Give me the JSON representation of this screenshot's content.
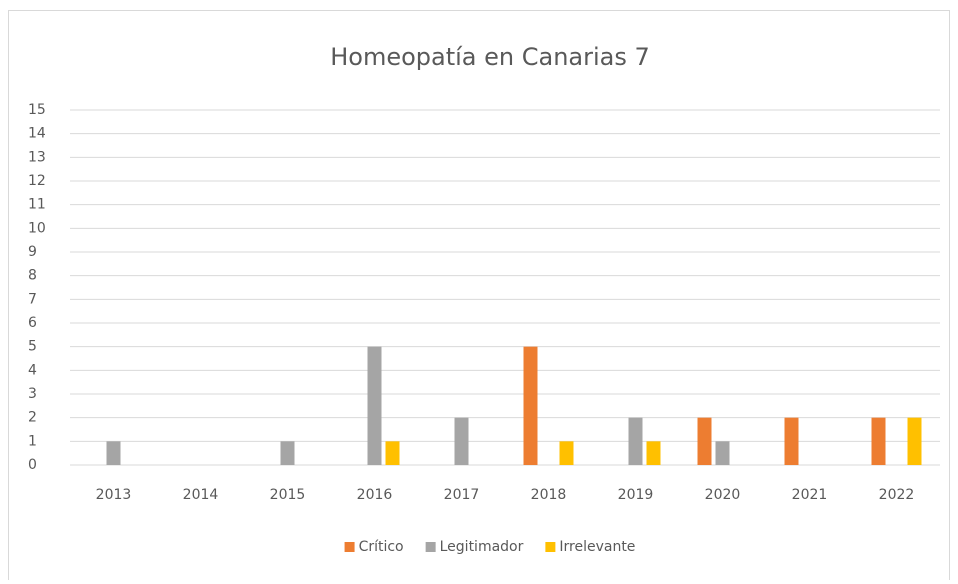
{
  "chart_data": {
    "type": "bar",
    "title": "Homeopatía en Canarias 7",
    "categories": [
      "2013",
      "2014",
      "2015",
      "2016",
      "2017",
      "2018",
      "2019",
      "2020",
      "2021",
      "2022"
    ],
    "series": [
      {
        "name": "Crítico",
        "color": "#ED7D31",
        "values": [
          0,
          0,
          0,
          0,
          0,
          5,
          0,
          2,
          2,
          2
        ]
      },
      {
        "name": "Legitimador",
        "color": "#A5A5A5",
        "values": [
          1,
          0,
          1,
          5,
          2,
          0,
          2,
          1,
          0,
          0
        ]
      },
      {
        "name": "Irrelevante",
        "color": "#FFC000",
        "values": [
          0,
          0,
          0,
          1,
          0,
          1,
          1,
          0,
          0,
          2
        ]
      }
    ],
    "ylim": [
      0,
      15
    ],
    "yticks": [
      0,
      1,
      2,
      3,
      4,
      5,
      6,
      7,
      8,
      9,
      10,
      11,
      12,
      13,
      14,
      15
    ],
    "grid": true,
    "legend": "bottom"
  }
}
